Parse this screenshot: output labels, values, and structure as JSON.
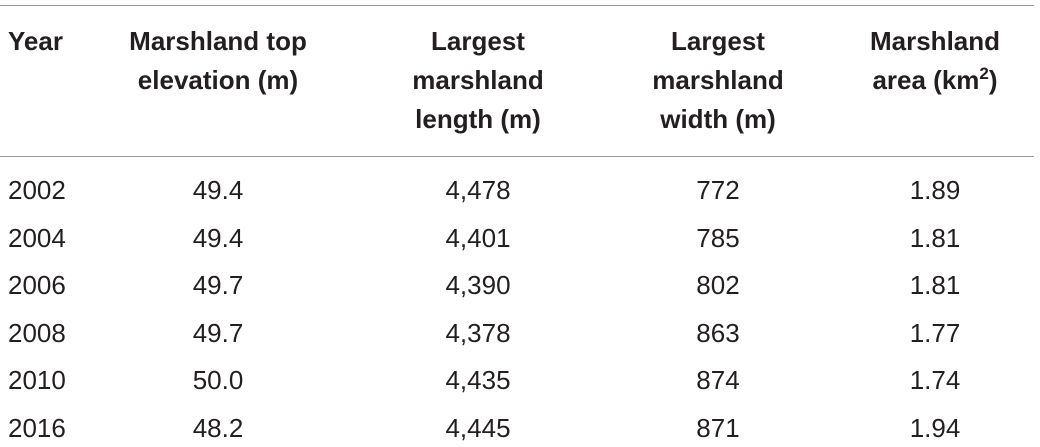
{
  "table": {
    "header": [
      {
        "lines": [
          "Year"
        ]
      },
      {
        "lines": [
          "Marshland top",
          "elevation (m)"
        ]
      },
      {
        "lines": [
          "Largest",
          "marshland",
          "length (m)"
        ]
      },
      {
        "lines": [
          "Largest",
          "marshland",
          "width (m)"
        ]
      },
      {
        "lines": [
          "Marshland",
          "area (km"
        ],
        "sup": "2",
        "after": ")"
      }
    ],
    "rows": [
      [
        "2002",
        "49.4",
        "4,478",
        "772",
        "1.89"
      ],
      [
        "2004",
        "49.4",
        "4,401",
        "785",
        "1.81"
      ],
      [
        "2006",
        "49.7",
        "4,390",
        "802",
        "1.81"
      ],
      [
        "2008",
        "49.7",
        "4,378",
        "863",
        "1.77"
      ],
      [
        "2010",
        "50.0",
        "4,435",
        "874",
        "1.74"
      ],
      [
        "2016",
        "48.2",
        "4,445",
        "871",
        "1.94"
      ]
    ]
  }
}
